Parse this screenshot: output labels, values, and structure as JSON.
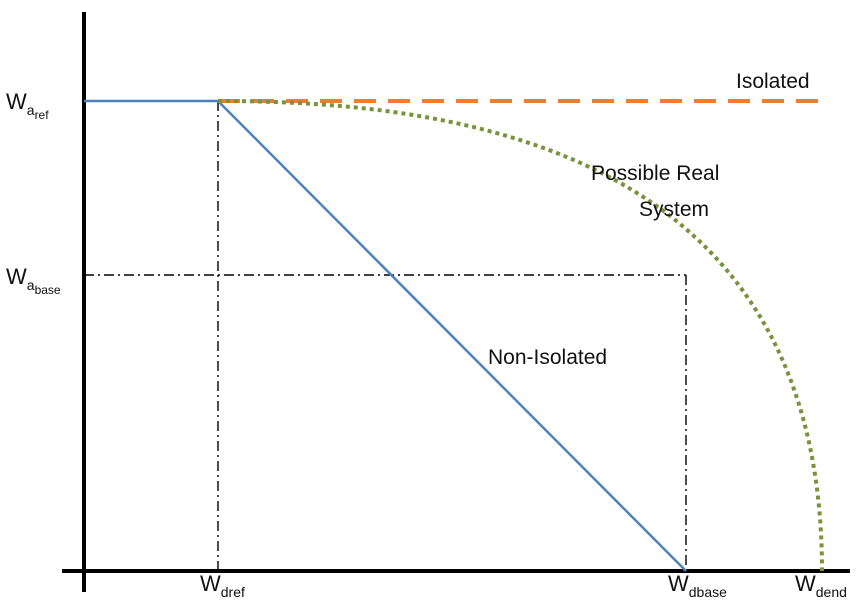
{
  "diagram": {
    "y_labels": {
      "a_ref": {
        "main": "W",
        "sub": "a",
        "subsub": "ref"
      },
      "a_base": {
        "main": "W",
        "sub": "a",
        "subsub": "base"
      }
    },
    "x_labels": {
      "d_ref": {
        "main": "W",
        "sub": "dref"
      },
      "d_base": {
        "main": "W",
        "sub": "dbase"
      },
      "d_end": {
        "main": "W",
        "sub": "dend"
      }
    },
    "curves": {
      "isolated": {
        "label": "Isolated",
        "color": "#ED7D31"
      },
      "possible_real": {
        "label_line1": "Possible Real",
        "label_line2": "System",
        "color": "#77933C"
      },
      "non_isolated": {
        "label": "Non-Isolated",
        "color": "#4F81BD"
      }
    }
  }
}
